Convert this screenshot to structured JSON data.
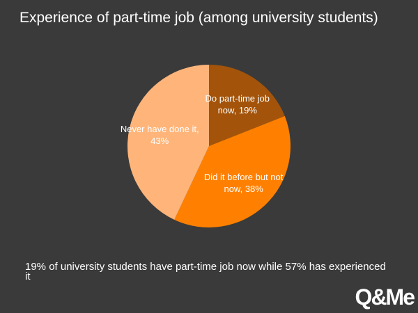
{
  "chart_data": {
    "type": "pie",
    "title": "Experience of part-time job (among university students)",
    "labels": [
      "Do part-time job now, 19%",
      "Did it before but not now, 38%",
      "Never have done it, 43%"
    ],
    "values": [
      19,
      38,
      43
    ],
    "colors": [
      "#a3540a",
      "#ff8000",
      "#ffb57a"
    ]
  },
  "note": "19% of university students have part-time job now while 57% has experienced it",
  "logo": "Q&Me"
}
